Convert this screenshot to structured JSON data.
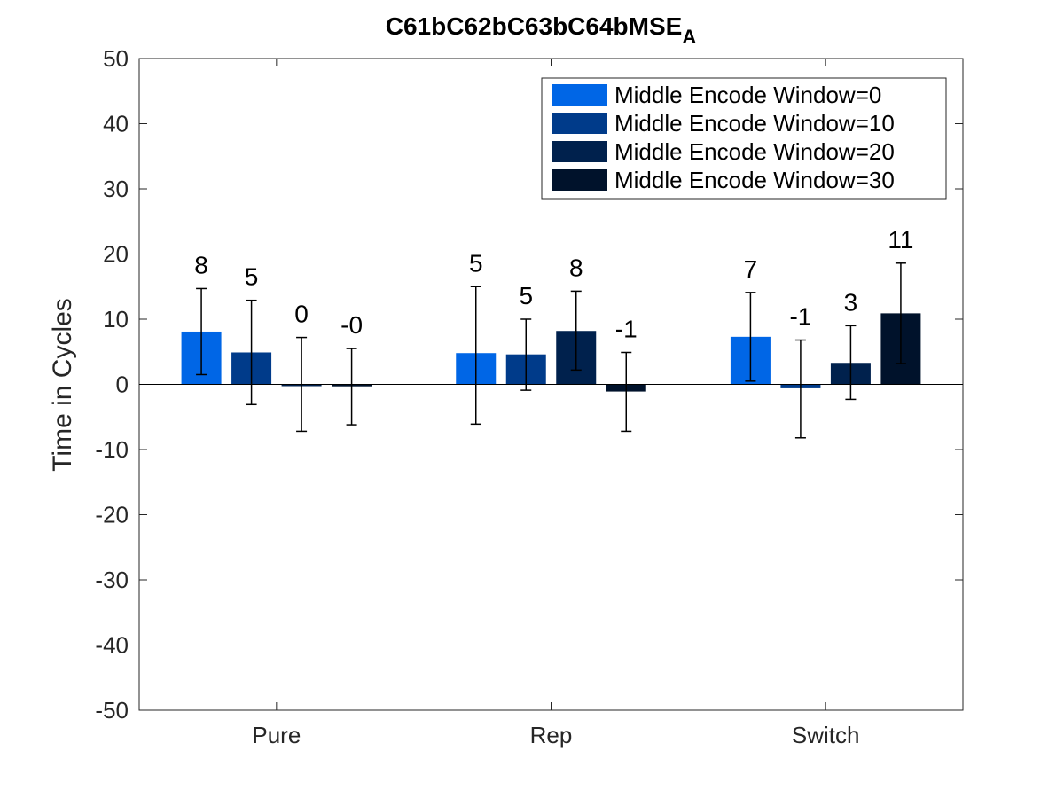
{
  "chart_data": {
    "type": "bar",
    "title": "C61bC62bC63bC64bMSE",
    "title_subscript": "A",
    "xlabel": "",
    "ylabel": "Time in Cycles",
    "ylim": [
      -50,
      50
    ],
    "yticks": [
      -50,
      -40,
      -30,
      -20,
      -10,
      0,
      10,
      20,
      30,
      40,
      50
    ],
    "categories": [
      "Pure",
      "Rep",
      "Switch"
    ],
    "grid": false,
    "legend_position": "top-right",
    "series": [
      {
        "name": "Middle Encode Window=0",
        "color": "#0066e6",
        "values": [
          8.1,
          4.8,
          7.3
        ],
        "err_low": [
          1.5,
          -6.1,
          0.5
        ],
        "err_high": [
          14.7,
          15.0,
          14.1
        ],
        "labels": [
          "8",
          "5",
          "7"
        ]
      },
      {
        "name": "Middle Encode Window=10",
        "color": "#003b8a",
        "values": [
          4.9,
          4.6,
          -0.6
        ],
        "err_low": [
          -3.1,
          -0.9,
          -8.2
        ],
        "err_high": [
          12.9,
          10.0,
          6.8
        ],
        "labels": [
          "5",
          "5",
          "-1"
        ]
      },
      {
        "name": "Middle Encode Window=20",
        "color": "#00214d",
        "values": [
          0.0,
          8.2,
          3.3
        ],
        "err_low": [
          -7.2,
          2.2,
          -2.3
        ],
        "err_high": [
          7.2,
          14.3,
          9.0
        ],
        "labels": [
          "0",
          "8",
          "3"
        ]
      },
      {
        "name": "Middle Encode Window=30",
        "color": "#00122b",
        "values": [
          -0.3,
          -1.1,
          10.9
        ],
        "err_low": [
          -6.2,
          -7.2,
          3.2
        ],
        "err_high": [
          5.5,
          4.9,
          18.6
        ],
        "labels": [
          "-0",
          "-1",
          "11"
        ]
      }
    ]
  }
}
